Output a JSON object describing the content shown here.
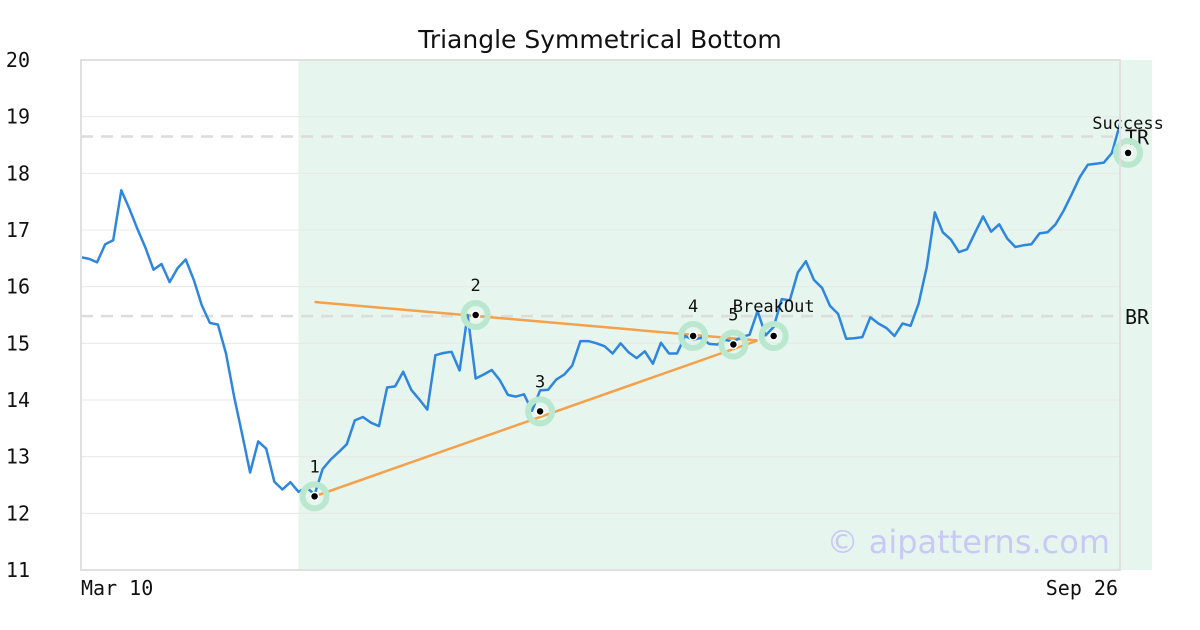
{
  "chart_data": {
    "type": "line",
    "title": "Triangle Symmetrical Bottom",
    "xlabel": "",
    "ylabel": "",
    "ylim": [
      11,
      20
    ],
    "yticks": [
      11,
      12,
      13,
      14,
      15,
      16,
      17,
      18,
      19,
      20
    ],
    "x_tick_labels": [
      "Mar 10",
      "Sep 26"
    ],
    "grid": true,
    "series": [
      {
        "color": "#2e86de",
        "values": [
          16.52,
          16.49,
          16.43,
          16.75,
          16.82,
          17.7,
          17.38,
          17.02,
          16.69,
          16.3,
          16.4,
          16.08,
          16.33,
          16.48,
          16.12,
          15.67,
          15.36,
          15.33,
          14.82,
          14.07,
          13.4,
          12.72,
          13.27,
          13.14,
          12.56,
          12.42,
          12.55,
          12.38,
          12.46,
          12.33,
          12.78,
          12.95,
          13.08,
          13.22,
          13.64,
          13.7,
          13.6,
          13.54,
          14.22,
          14.24,
          14.5,
          14.18,
          14.01,
          13.83,
          14.79,
          14.83,
          14.85,
          14.52,
          15.5,
          14.38,
          14.45,
          14.53,
          14.35,
          14.09,
          14.06,
          14.1,
          13.81,
          14.17,
          14.18,
          14.36,
          14.45,
          14.61,
          15.04,
          15.04,
          15.0,
          14.95,
          14.82,
          15.0,
          14.84,
          14.74,
          14.86,
          14.64,
          15.01,
          14.82,
          14.82,
          15.13,
          15.06,
          15.1,
          14.99,
          14.98,
          15.06,
          15.03,
          15.11,
          15.15,
          15.57,
          15.14,
          15.29,
          15.78,
          15.76,
          16.25,
          16.45,
          16.12,
          15.98,
          15.66,
          15.52,
          15.08,
          15.09,
          15.11,
          15.46,
          15.35,
          15.27,
          15.13,
          15.35,
          15.31,
          15.7,
          16.34,
          17.31,
          16.96,
          16.83,
          16.61,
          16.66,
          16.95,
          17.24,
          16.97,
          17.1,
          16.85,
          16.7,
          16.73,
          16.75,
          16.94,
          16.96,
          17.1,
          17.34,
          17.63,
          17.93,
          18.15,
          18.17,
          18.19,
          18.36,
          18.87
        ]
      }
    ],
    "shaded_region": {
      "start_index": 27,
      "end_index": 133,
      "color": "#e6f5ee"
    },
    "reference_lines": [
      {
        "label": "TR",
        "y": 18.65
      },
      {
        "label": "BR",
        "y": 15.48
      }
    ],
    "trend_lines": [
      {
        "from": {
          "index": 29,
          "y": 15.73
        },
        "to": {
          "index": 84,
          "y": 15.05
        },
        "color": "#f5a04a"
      },
      {
        "from": {
          "index": 29,
          "y": 12.3
        },
        "to": {
          "index": 84,
          "y": 15.05
        },
        "color": "#f5a04a"
      }
    ],
    "pattern_points": [
      {
        "label": "1",
        "index": 29,
        "y": 12.3
      },
      {
        "label": "2",
        "index": 49,
        "y": 15.5
      },
      {
        "label": "3",
        "index": 57,
        "y": 13.8
      },
      {
        "label": "4",
        "index": 76,
        "y": 15.13
      },
      {
        "label": "5",
        "index": 81,
        "y": 14.98
      },
      {
        "label": "BreakOut",
        "index": 86,
        "y": 15.13
      },
      {
        "label": "Success",
        "index": 130,
        "y": 18.36
      }
    ],
    "watermark": "© aipatterns.com"
  }
}
